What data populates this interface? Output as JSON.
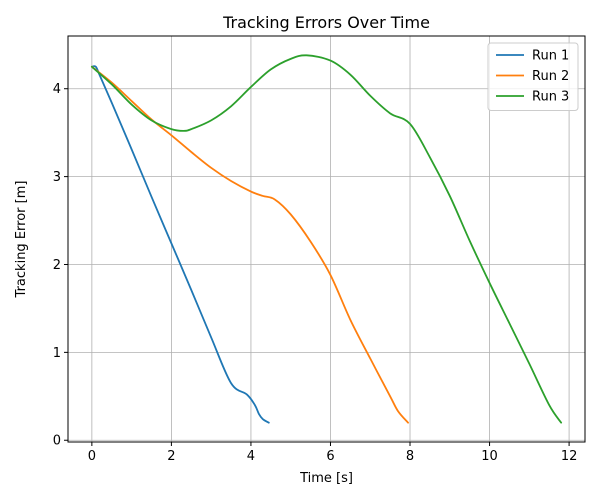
{
  "chart_data": {
    "type": "line",
    "title": "Tracking Errors Over Time",
    "xlabel": "Time [s]",
    "ylabel": "Tracking Error [m]",
    "xlim": [
      -0.6,
      12.4
    ],
    "ylim": [
      -0.02,
      4.6
    ],
    "xticks": [
      0,
      2,
      4,
      6,
      8,
      10,
      12
    ],
    "yticks": [
      0,
      1,
      2,
      3,
      4
    ],
    "grid": true,
    "legend_position": "top-right",
    "series": [
      {
        "name": "Run 1",
        "color": "#1f77b4",
        "x": [
          0.0,
          0.1,
          0.2,
          0.5,
          1.0,
          1.5,
          2.0,
          2.5,
          3.0,
          3.5,
          3.9,
          4.1,
          4.2,
          4.3,
          4.45
        ],
        "y": [
          4.25,
          4.25,
          4.15,
          3.84,
          3.31,
          2.77,
          2.24,
          1.71,
          1.17,
          0.65,
          0.52,
          0.4,
          0.3,
          0.24,
          0.2
        ]
      },
      {
        "name": "Run 2",
        "color": "#ff7f0e",
        "x": [
          0.0,
          0.5,
          1.0,
          1.5,
          2.0,
          2.5,
          3.0,
          3.5,
          4.0,
          4.3,
          4.6,
          5.0,
          5.5,
          6.0,
          6.5,
          7.0,
          7.5,
          7.7,
          7.95
        ],
        "y": [
          4.25,
          4.07,
          3.86,
          3.65,
          3.47,
          3.28,
          3.1,
          2.95,
          2.83,
          2.78,
          2.74,
          2.57,
          2.26,
          1.88,
          1.37,
          0.93,
          0.5,
          0.33,
          0.2
        ]
      },
      {
        "name": "Run 3",
        "color": "#2ca02c",
        "x": [
          0.0,
          0.5,
          1.0,
          1.5,
          2.0,
          2.3,
          2.5,
          3.0,
          3.5,
          4.0,
          4.5,
          5.0,
          5.4,
          6.0,
          6.5,
          7.0,
          7.5,
          8.0,
          8.5,
          9.0,
          9.5,
          10.0,
          10.5,
          11.0,
          11.5,
          11.8
        ],
        "y": [
          4.25,
          4.05,
          3.82,
          3.64,
          3.54,
          3.52,
          3.54,
          3.64,
          3.8,
          4.02,
          4.22,
          4.34,
          4.38,
          4.32,
          4.16,
          3.92,
          3.72,
          3.6,
          3.22,
          2.78,
          2.27,
          1.79,
          1.33,
          0.87,
          0.4,
          0.2
        ]
      }
    ]
  }
}
